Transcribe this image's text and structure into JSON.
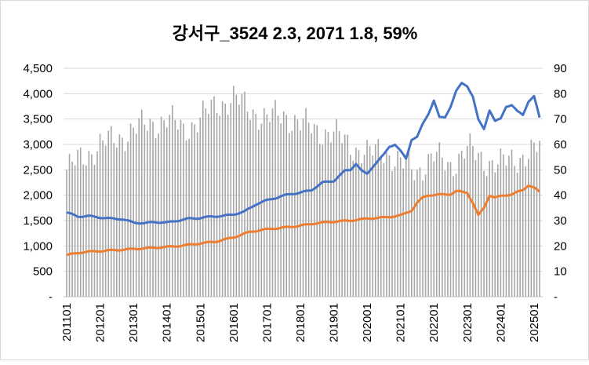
{
  "chart_data": {
    "type": "bar+line",
    "title": "강서구_3524 2.3, 2071 1.8, 59%",
    "x_start": "2011-01",
    "x_end": "2025-02",
    "x_ticks": [
      "201101",
      "201201",
      "201301",
      "201401",
      "201501",
      "201601",
      "201701",
      "201801",
      "201901",
      "202001",
      "202101",
      "202201",
      "202301",
      "202401",
      "202501"
    ],
    "y_left": {
      "min": 0,
      "max": 4500,
      "step": 500,
      "labels": [
        "-",
        "500",
        "1,000",
        "1,500",
        "2,000",
        "2,500",
        "3,000",
        "3,500",
        "4,000",
        "4,500"
      ]
    },
    "y_right": {
      "min": 0,
      "max": 90,
      "step": 10,
      "labels": [
        "-",
        "10",
        "20",
        "30",
        "40",
        "50",
        "60",
        "70",
        "80",
        "90"
      ]
    },
    "grid": "horizontal",
    "colors": {
      "bars": "#a6a6a6",
      "line1": "#4472c4",
      "line2": "#ed7d31",
      "grid": "#d9d9d9"
    },
    "bars_axis": "right",
    "bars_knots": [
      [
        0,
        50
      ],
      [
        6,
        55
      ],
      [
        12,
        60
      ],
      [
        18,
        62
      ],
      [
        24,
        66
      ],
      [
        30,
        68
      ],
      [
        36,
        70
      ],
      [
        42,
        66
      ],
      [
        48,
        70
      ],
      [
        54,
        76
      ],
      [
        60,
        78
      ],
      [
        66,
        74
      ],
      [
        72,
        70
      ],
      [
        78,
        72
      ],
      [
        84,
        68
      ],
      [
        90,
        66
      ],
      [
        96,
        64
      ],
      [
        102,
        60
      ],
      [
        108,
        56
      ],
      [
        114,
        58
      ],
      [
        120,
        52
      ],
      [
        126,
        50
      ],
      [
        132,
        55
      ],
      [
        138,
        52
      ],
      [
        144,
        58
      ],
      [
        150,
        54
      ],
      [
        156,
        52
      ],
      [
        162,
        55
      ],
      [
        168,
        57
      ],
      [
        170,
        59
      ]
    ],
    "line1_axis": "left",
    "line1_knots": [
      [
        0,
        1660
      ],
      [
        4,
        1580
      ],
      [
        8,
        1590
      ],
      [
        12,
        1560
      ],
      [
        16,
        1540
      ],
      [
        20,
        1530
      ],
      [
        24,
        1460
      ],
      [
        28,
        1450
      ],
      [
        32,
        1470
      ],
      [
        36,
        1460
      ],
      [
        40,
        1500
      ],
      [
        44,
        1540
      ],
      [
        48,
        1550
      ],
      [
        52,
        1580
      ],
      [
        56,
        1590
      ],
      [
        60,
        1620
      ],
      [
        64,
        1680
      ],
      [
        68,
        1820
      ],
      [
        72,
        1900
      ],
      [
        76,
        1960
      ],
      [
        80,
        2020
      ],
      [
        84,
        2050
      ],
      [
        88,
        2100
      ],
      [
        92,
        2250
      ],
      [
        96,
        2280
      ],
      [
        98,
        2380
      ],
      [
        100,
        2480
      ],
      [
        102,
        2500
      ],
      [
        104,
        2620
      ],
      [
        106,
        2480
      ],
      [
        108,
        2420
      ],
      [
        110,
        2560
      ],
      [
        112,
        2680
      ],
      [
        114,
        2800
      ],
      [
        116,
        2960
      ],
      [
        118,
        3000
      ],
      [
        120,
        2870
      ],
      [
        122,
        2720
      ],
      [
        124,
        3100
      ],
      [
        126,
        3150
      ],
      [
        128,
        3400
      ],
      [
        130,
        3600
      ],
      [
        132,
        3870
      ],
      [
        134,
        3530
      ],
      [
        136,
        3530
      ],
      [
        138,
        3750
      ],
      [
        140,
        4050
      ],
      [
        142,
        4200
      ],
      [
        144,
        4150
      ],
      [
        146,
        3950
      ],
      [
        148,
        3480
      ],
      [
        150,
        3300
      ],
      [
        152,
        3680
      ],
      [
        154,
        3460
      ],
      [
        156,
        3500
      ],
      [
        158,
        3750
      ],
      [
        160,
        3780
      ],
      [
        162,
        3650
      ],
      [
        164,
        3580
      ],
      [
        166,
        3850
      ],
      [
        168,
        3950
      ],
      [
        170,
        3520
      ]
    ],
    "line2_axis": "left",
    "line2_knots": [
      [
        0,
        820
      ],
      [
        6,
        880
      ],
      [
        12,
        900
      ],
      [
        18,
        920
      ],
      [
        24,
        940
      ],
      [
        30,
        960
      ],
      [
        36,
        980
      ],
      [
        42,
        1010
      ],
      [
        48,
        1050
      ],
      [
        54,
        1090
      ],
      [
        60,
        1170
      ],
      [
        66,
        1280
      ],
      [
        72,
        1330
      ],
      [
        78,
        1360
      ],
      [
        84,
        1400
      ],
      [
        90,
        1450
      ],
      [
        96,
        1480
      ],
      [
        102,
        1500
      ],
      [
        108,
        1540
      ],
      [
        114,
        1560
      ],
      [
        120,
        1600
      ],
      [
        124,
        1700
      ],
      [
        126,
        1850
      ],
      [
        128,
        1950
      ],
      [
        130,
        2000
      ],
      [
        134,
        2010
      ],
      [
        138,
        2020
      ],
      [
        140,
        2080
      ],
      [
        144,
        2050
      ],
      [
        146,
        1850
      ],
      [
        148,
        1600
      ],
      [
        150,
        1750
      ],
      [
        152,
        2000
      ],
      [
        154,
        1950
      ],
      [
        156,
        1980
      ],
      [
        160,
        2020
      ],
      [
        164,
        2100
      ],
      [
        166,
        2200
      ],
      [
        168,
        2150
      ],
      [
        170,
        2060
      ]
    ]
  }
}
